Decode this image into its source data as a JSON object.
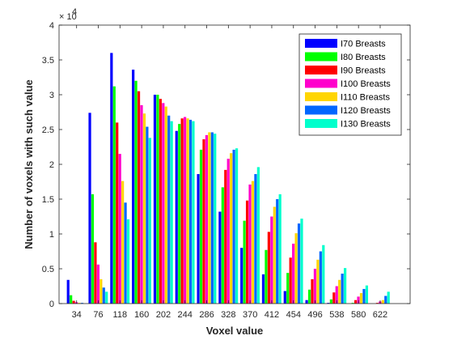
{
  "chart_data": {
    "type": "bar",
    "xlabel": "Voxel value",
    "ylabel": "Number of voxels with such value",
    "y_exponent_base": "× 10",
    "y_exponent_power": "4",
    "ylim": [
      0,
      40000
    ],
    "yticks": [
      0,
      5000,
      10000,
      15000,
      20000,
      25000,
      30000,
      35000,
      40000
    ],
    "ytick_labels": [
      "0",
      "0.5",
      "1",
      "1.5",
      "2",
      "2.5",
      "3",
      "3.5",
      "4"
    ],
    "xlim": [
      0,
      680
    ],
    "categories": [
      "34",
      "76",
      "118",
      "160",
      "202",
      "244",
      "286",
      "328",
      "370",
      "412",
      "454",
      "496",
      "538",
      "580",
      "622"
    ],
    "x": [
      34,
      76,
      118,
      160,
      202,
      244,
      286,
      328,
      370,
      412,
      454,
      496,
      538,
      580,
      622
    ],
    "legend_position": "top-right",
    "series": [
      {
        "name": "I70 Breasts",
        "color": "#0000ff",
        "values": [
          3400,
          27400,
          36000,
          33600,
          30000,
          24800,
          18600,
          13200,
          8000,
          4200,
          1800,
          500,
          100,
          0,
          0
        ]
      },
      {
        "name": "I80 Breasts",
        "color": "#00ff00",
        "values": [
          1200,
          15700,
          31200,
          32000,
          30000,
          25800,
          22100,
          16700,
          11900,
          7700,
          4400,
          2000,
          600,
          100,
          0
        ]
      },
      {
        "name": "I90 Breasts",
        "color": "#ff0000",
        "values": [
          400,
          8800,
          26000,
          30500,
          29400,
          26600,
          23600,
          19200,
          14800,
          10300,
          6600,
          3500,
          1600,
          500,
          100
        ]
      },
      {
        "name": "I100 Breasts",
        "color": "#ff00cc",
        "values": [
          200,
          5600,
          21500,
          28500,
          28800,
          26800,
          24200,
          20800,
          17100,
          12500,
          8600,
          5000,
          2500,
          1000,
          300
        ]
      },
      {
        "name": "I110 Breasts",
        "color": "#ffd500",
        "values": [
          100,
          3500,
          17600,
          27300,
          28300,
          26600,
          24600,
          21600,
          17600,
          13900,
          10100,
          6300,
          3400,
          1500,
          500
        ]
      },
      {
        "name": "I120 Breasts",
        "color": "#0066ff",
        "values": [
          100,
          2300,
          14500,
          25400,
          27000,
          26400,
          24600,
          22100,
          18600,
          15000,
          11500,
          7500,
          4300,
          2100,
          1100
        ]
      },
      {
        "name": "I130 Breasts",
        "color": "#00ffcc",
        "values": [
          0,
          1700,
          12100,
          23800,
          26200,
          26200,
          24400,
          22300,
          19600,
          15700,
          12200,
          8400,
          5100,
          2600,
          1700
        ]
      }
    ]
  }
}
